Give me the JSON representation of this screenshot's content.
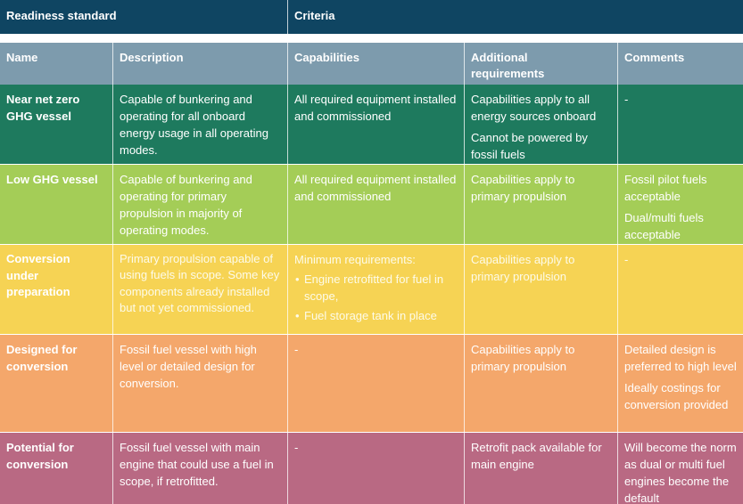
{
  "header": {
    "readiness_standard": "Readiness standard",
    "criteria": "Criteria"
  },
  "columns": {
    "name": "Name",
    "description": "Description",
    "capabilities": "Capabilities",
    "additional_line1": "Additional",
    "additional_line2": "requirements",
    "comments": "Comments"
  },
  "colors": {
    "header_top": "#0f4562",
    "header_cols": "#7d9bad",
    "near_net_zero": "#1e7a5e",
    "low_ghg": "#a4cd57",
    "conversion_under_preparation": "#f6d354",
    "designed_for_conversion": "#f4a76b",
    "potential_for_conversion": "#b96983"
  },
  "rows": [
    {
      "name_line1": "Near net zero",
      "name_line2": "GHG vessel",
      "description": "Capable of bunkering and operating for all onboard energy usage in all operating modes.",
      "capabilities": "All required equipment installed and commissioned",
      "additional": [
        "Capabilities apply to all energy sources onboard",
        "Cannot be powered by fossil fuels"
      ],
      "comments": [
        "-"
      ]
    },
    {
      "name_line1": "Low GHG vessel",
      "description": "Capable of bunkering and operating for primary propulsion in majority of operating modes.",
      "capabilities": "All required equipment installed and commissioned",
      "additional": [
        "Capabilities apply to primary propulsion"
      ],
      "comments": [
        "Fossil pilot fuels acceptable",
        "Dual/multi fuels acceptable"
      ]
    },
    {
      "name_line1": "Conversion",
      "name_line2": "under",
      "name_line3": "preparation",
      "description": "Primary propulsion capable of using fuels in scope. Some key components already installed but not yet commissioned.",
      "capabilities_intro": "Minimum requirements:",
      "capabilities_bullets": [
        "Engine retrofitted for fuel in scope,",
        "Fuel storage tank in place"
      ],
      "additional": [
        "Capabilities apply to primary propulsion"
      ],
      "comments": [
        "-"
      ]
    },
    {
      "name_line1": "Designed for",
      "name_line2": "conversion",
      "description": "Fossil fuel vessel with high level or detailed design for conversion.",
      "capabilities": "-",
      "additional": [
        "Capabilities apply to primary propulsion"
      ],
      "comments": [
        "Detailed design is preferred to high level",
        "Ideally costings for conversion provided"
      ]
    },
    {
      "name_line1": "Potential for",
      "name_line2": "conversion",
      "description": "Fossil fuel vessel with main engine that could use a fuel in scope, if retrofitted.",
      "capabilities": "-",
      "additional": [
        "Retrofit pack available for main engine"
      ],
      "comments": [
        "Will become the norm as dual or multi fuel engines become the default"
      ]
    }
  ]
}
